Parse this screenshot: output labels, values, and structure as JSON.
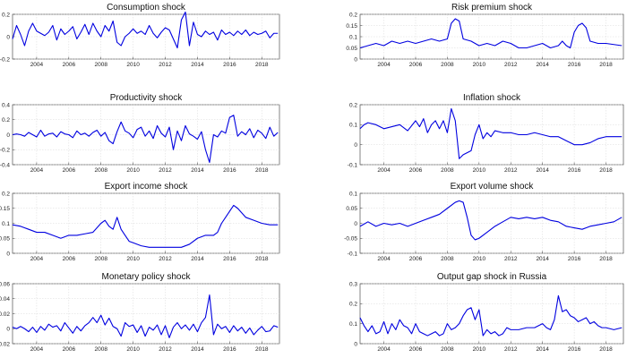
{
  "chart_data": [
    {
      "type": "line",
      "title": "Consumption shock",
      "ylim": [
        -0.2,
        0.2
      ],
      "yticks": [
        -0.2,
        0,
        0.2
      ],
      "xlim": [
        2002.5,
        2019.1
      ],
      "xticks": [
        2004,
        2006,
        2008,
        2010,
        2012,
        2014,
        2016,
        2018
      ],
      "grid": true,
      "color": "#0000e0",
      "x": [
        2002.5,
        2002.75,
        2003,
        2003.25,
        2003.5,
        2003.75,
        2004,
        2004.25,
        2004.5,
        2004.75,
        2005,
        2005.25,
        2005.5,
        2005.75,
        2006,
        2006.25,
        2006.5,
        2006.75,
        2007,
        2007.25,
        2007.5,
        2007.75,
        2008,
        2008.25,
        2008.5,
        2008.75,
        2009,
        2009.25,
        2009.5,
        2009.75,
        2010,
        2010.25,
        2010.5,
        2010.75,
        2011,
        2011.25,
        2011.5,
        2011.75,
        2012,
        2012.25,
        2012.5,
        2012.75,
        2013,
        2013.25,
        2013.5,
        2013.75,
        2014,
        2014.25,
        2014.5,
        2014.75,
        2015,
        2015.25,
        2015.5,
        2015.75,
        2016,
        2016.25,
        2016.5,
        2016.75,
        2017,
        2017.25,
        2017.5,
        2017.75,
        2018,
        2018.25,
        2018.5,
        2018.75,
        2019
      ],
      "y": [
        -0.02,
        0.1,
        0.02,
        -0.08,
        0.05,
        0.12,
        0.05,
        0.03,
        0.01,
        0.04,
        0.1,
        -0.03,
        0.07,
        0.02,
        0.05,
        0.09,
        -0.02,
        0.04,
        0.11,
        0.02,
        0.12,
        0.05,
        0,
        0.1,
        0.05,
        0.14,
        -0.05,
        -0.08,
        0,
        0.03,
        0.07,
        0.03,
        0.05,
        0.02,
        0.1,
        0.03,
        -0.01,
        0.04,
        0.08,
        0.06,
        -0.02,
        -0.1,
        0.15,
        0.22,
        -0.08,
        0.13,
        0.02,
        0,
        0.05,
        0.02,
        0.04,
        -0.03,
        0.06,
        0.02,
        0.04,
        0.01,
        0.05,
        0.02,
        0.06,
        0.01,
        0.04,
        0.02,
        0.03,
        0.05,
        -0.01,
        0.03,
        0.03
      ]
    },
    {
      "type": "line",
      "title": "Risk premium shock",
      "ylim": [
        0,
        0.2
      ],
      "yticks": [
        0,
        0.05,
        0.1,
        0.15,
        0.2
      ],
      "xlim": [
        2002.5,
        2019.1
      ],
      "xticks": [
        2004,
        2006,
        2008,
        2010,
        2012,
        2014,
        2016,
        2018
      ],
      "grid": true,
      "color": "#0000e0",
      "x": [
        2002.5,
        2003,
        2003.5,
        2004,
        2004.5,
        2005,
        2005.5,
        2006,
        2006.5,
        2007,
        2007.5,
        2008,
        2008.25,
        2008.5,
        2008.75,
        2009,
        2009.5,
        2010,
        2010.5,
        2011,
        2011.5,
        2012,
        2012.5,
        2013,
        2013.5,
        2014,
        2014.5,
        2015,
        2015.25,
        2015.5,
        2015.75,
        2016,
        2016.25,
        2016.5,
        2016.75,
        2017,
        2017.5,
        2018,
        2018.5,
        2019
      ],
      "y": [
        0.05,
        0.06,
        0.07,
        0.06,
        0.08,
        0.07,
        0.08,
        0.07,
        0.08,
        0.09,
        0.08,
        0.09,
        0.16,
        0.18,
        0.17,
        0.09,
        0.08,
        0.06,
        0.07,
        0.06,
        0.08,
        0.07,
        0.05,
        0.05,
        0.06,
        0.07,
        0.05,
        0.06,
        0.08,
        0.06,
        0.05,
        0.12,
        0.15,
        0.16,
        0.14,
        0.08,
        0.07,
        0.07,
        0.065,
        0.06
      ]
    },
    {
      "type": "line",
      "title": "Productivity shock",
      "ylim": [
        -0.4,
        0.4
      ],
      "yticks": [
        -0.4,
        -0.2,
        0,
        0.2,
        0.4
      ],
      "xlim": [
        2002.5,
        2019.1
      ],
      "xticks": [
        2004,
        2006,
        2008,
        2010,
        2012,
        2014,
        2016,
        2018
      ],
      "grid": true,
      "color": "#0000e0",
      "x": [
        2002.5,
        2002.75,
        2003,
        2003.25,
        2003.5,
        2003.75,
        2004,
        2004.25,
        2004.5,
        2004.75,
        2005,
        2005.25,
        2005.5,
        2005.75,
        2006,
        2006.25,
        2006.5,
        2006.75,
        2007,
        2007.25,
        2007.5,
        2007.75,
        2008,
        2008.25,
        2008.5,
        2008.75,
        2009,
        2009.25,
        2009.5,
        2009.75,
        2010,
        2010.25,
        2010.5,
        2010.75,
        2011,
        2011.25,
        2011.5,
        2011.75,
        2012,
        2012.25,
        2012.5,
        2012.75,
        2013,
        2013.25,
        2013.5,
        2013.75,
        2014,
        2014.25,
        2014.5,
        2014.75,
        2015,
        2015.25,
        2015.5,
        2015.75,
        2016,
        2016.25,
        2016.5,
        2016.75,
        2017,
        2017.25,
        2017.5,
        2017.75,
        2018,
        2018.25,
        2018.5,
        2018.75,
        2019
      ],
      "y": [
        0,
        0.01,
        0,
        -0.02,
        0.03,
        0,
        -0.03,
        0.06,
        -0.02,
        0.01,
        0.02,
        -0.03,
        0.04,
        0.01,
        0,
        -0.04,
        0.05,
        0,
        0.02,
        -0.02,
        0.03,
        0.06,
        -0.02,
        0.03,
        -0.08,
        -0.12,
        0.04,
        0.17,
        0.05,
        0.02,
        -0.04,
        0.07,
        0.1,
        -0.02,
        0.05,
        -0.05,
        0.12,
        0.02,
        -0.03,
        0.1,
        -0.2,
        0.05,
        -0.08,
        0.12,
        0.01,
        -0.02,
        -0.06,
        0.04,
        -0.2,
        -0.37,
        0,
        -0.03,
        0.05,
        0.02,
        0.23,
        0.26,
        -0.02,
        0.04,
        0,
        0.08,
        -0.04,
        0.06,
        0.02,
        -0.05,
        0.1,
        -0.02,
        0.03
      ]
    },
    {
      "type": "line",
      "title": "Inflation shock",
      "ylim": [
        -0.1,
        0.2
      ],
      "yticks": [
        -0.1,
        0,
        0.1,
        0.2
      ],
      "xlim": [
        2002.5,
        2019.1
      ],
      "xticks": [
        2004,
        2006,
        2008,
        2010,
        2012,
        2014,
        2016,
        2018
      ],
      "grid": true,
      "color": "#0000e0",
      "x": [
        2002.5,
        2002.75,
        2003,
        2003.5,
        2004,
        2004.5,
        2005,
        2005.5,
        2006,
        2006.25,
        2006.5,
        2006.75,
        2007,
        2007.25,
        2007.5,
        2007.75,
        2008,
        2008.25,
        2008.5,
        2008.75,
        2009,
        2009.25,
        2009.5,
        2009.75,
        2010,
        2010.25,
        2010.5,
        2010.75,
        2011,
        2011.5,
        2012,
        2012.5,
        2013,
        2013.5,
        2014,
        2014.5,
        2015,
        2015.5,
        2016,
        2016.5,
        2017,
        2017.5,
        2018,
        2018.5,
        2019
      ],
      "y": [
        0.08,
        0.1,
        0.11,
        0.1,
        0.08,
        0.09,
        0.1,
        0.07,
        0.12,
        0.09,
        0.13,
        0.06,
        0.1,
        0.12,
        0.08,
        0.12,
        0.06,
        0.18,
        0.12,
        -0.07,
        -0.05,
        -0.04,
        -0.03,
        0.05,
        0.1,
        0.03,
        0.06,
        0.04,
        0.07,
        0.06,
        0.06,
        0.05,
        0.05,
        0.06,
        0.05,
        0.04,
        0.04,
        0.02,
        0,
        0,
        0.01,
        0.03,
        0.04,
        0.04,
        0.04
      ]
    },
    {
      "type": "line",
      "title": "Export income shock",
      "ylim": [
        0,
        0.2
      ],
      "yticks": [
        0,
        0.05,
        0.1,
        0.15,
        0.2
      ],
      "xlim": [
        2002.5,
        2019.1
      ],
      "xticks": [
        2004,
        2006,
        2008,
        2010,
        2012,
        2014,
        2016,
        2018
      ],
      "grid": true,
      "color": "#0000e0",
      "x": [
        2002.5,
        2003,
        2003.5,
        2004,
        2004.5,
        2005,
        2005.5,
        2006,
        2006.5,
        2007,
        2007.5,
        2008,
        2008.25,
        2008.5,
        2008.75,
        2009,
        2009.25,
        2009.5,
        2009.75,
        2010,
        2010.5,
        2011,
        2011.5,
        2012,
        2012.5,
        2013,
        2013.5,
        2014,
        2014.5,
        2015,
        2015.25,
        2015.5,
        2015.75,
        2016,
        2016.25,
        2016.5,
        2017,
        2017.5,
        2018,
        2018.5,
        2019
      ],
      "y": [
        0.095,
        0.09,
        0.08,
        0.07,
        0.07,
        0.06,
        0.05,
        0.06,
        0.06,
        0.065,
        0.07,
        0.1,
        0.11,
        0.09,
        0.08,
        0.12,
        0.08,
        0.06,
        0.04,
        0.035,
        0.025,
        0.02,
        0.02,
        0.02,
        0.02,
        0.02,
        0.03,
        0.05,
        0.06,
        0.06,
        0.07,
        0.1,
        0.12,
        0.14,
        0.16,
        0.15,
        0.12,
        0.11,
        0.1,
        0.095,
        0.095
      ]
    },
    {
      "type": "line",
      "title": "Export volume shock",
      "ylim": [
        -0.1,
        0.1
      ],
      "yticks": [
        -0.1,
        -0.05,
        0,
        0.05,
        0.1
      ],
      "xlim": [
        2002.5,
        2019.1
      ],
      "xticks": [
        2004,
        2006,
        2008,
        2010,
        2012,
        2014,
        2016,
        2018
      ],
      "grid": true,
      "color": "#0000e0",
      "x": [
        2002.5,
        2003,
        2003.5,
        2004,
        2004.5,
        2005,
        2005.5,
        2006,
        2006.5,
        2007,
        2007.5,
        2008,
        2008.5,
        2008.75,
        2009,
        2009.25,
        2009.5,
        2009.75,
        2010,
        2010.5,
        2011,
        2011.5,
        2012,
        2012.5,
        2013,
        2013.5,
        2014,
        2014.5,
        2015,
        2015.5,
        2016,
        2016.5,
        2017,
        2017.5,
        2018,
        2018.5,
        2019
      ],
      "y": [
        -0.01,
        0.005,
        -0.01,
        0,
        -0.005,
        0,
        -0.01,
        0,
        0.01,
        0.02,
        0.03,
        0.05,
        0.07,
        0.075,
        0.07,
        0.02,
        -0.04,
        -0.055,
        -0.05,
        -0.03,
        -0.01,
        0.005,
        0.02,
        0.015,
        0.02,
        0.015,
        0.02,
        0.01,
        0.005,
        -0.01,
        -0.015,
        -0.02,
        -0.01,
        -0.005,
        0,
        0.005,
        0.02
      ]
    },
    {
      "type": "line",
      "title": "Monetary policy shock",
      "ylim": [
        -0.02,
        0.06
      ],
      "yticks": [
        -0.02,
        0,
        0.02,
        0.04,
        0.06
      ],
      "xlim": [
        2002.5,
        2019.1
      ],
      "xticks": [
        2004,
        2006,
        2008,
        2010,
        2012,
        2014,
        2016,
        2018
      ],
      "grid": true,
      "color": "#0000e0",
      "x": [
        2002.5,
        2002.75,
        2003,
        2003.25,
        2003.5,
        2003.75,
        2004,
        2004.25,
        2004.5,
        2004.75,
        2005,
        2005.25,
        2005.5,
        2005.75,
        2006,
        2006.25,
        2006.5,
        2006.75,
        2007,
        2007.25,
        2007.5,
        2007.75,
        2008,
        2008.25,
        2008.5,
        2008.75,
        2009,
        2009.25,
        2009.5,
        2009.75,
        2010,
        2010.25,
        2010.5,
        2010.75,
        2011,
        2011.25,
        2011.5,
        2011.75,
        2012,
        2012.25,
        2012.5,
        2012.75,
        2013,
        2013.25,
        2013.5,
        2013.75,
        2014,
        2014.25,
        2014.5,
        2014.75,
        2015,
        2015.25,
        2015.5,
        2015.75,
        2016,
        2016.25,
        2016.5,
        2016.75,
        2017,
        2017.25,
        2017.5,
        2017.75,
        2018,
        2018.25,
        2018.5,
        2018.75,
        2019
      ],
      "y": [
        0.002,
        0,
        0.003,
        0,
        -0.004,
        0.002,
        -0.005,
        0.003,
        -0.002,
        0.006,
        0.002,
        0.004,
        -0.003,
        0.008,
        0.001,
        -0.006,
        0.003,
        -0.003,
        0.004,
        0.008,
        0.015,
        0.008,
        0.018,
        0.005,
        0.014,
        0.003,
        0,
        -0.01,
        0.008,
        0.003,
        0.005,
        -0.005,
        0.004,
        -0.01,
        0.002,
        -0.002,
        0.005,
        -0.008,
        0.004,
        -0.012,
        0.002,
        0.008,
        0,
        0.005,
        -0.002,
        0.006,
        -0.004,
        0.008,
        0.015,
        0.045,
        -0.008,
        0.006,
        0,
        0.003,
        -0.005,
        0.004,
        -0.003,
        0.002,
        -0.006,
        0.001,
        -0.008,
        -0.002,
        0.003,
        -0.004,
        -0.003,
        0.004,
        0.002
      ]
    },
    {
      "type": "line",
      "title": "Output gap shock in Russia",
      "ylim": [
        0,
        0.3
      ],
      "yticks": [
        0,
        0.1,
        0.2,
        0.3
      ],
      "xlim": [
        2002.5,
        2019.1
      ],
      "xticks": [
        2004,
        2006,
        2008,
        2010,
        2012,
        2014,
        2016,
        2018
      ],
      "grid": true,
      "color": "#0000e0",
      "x": [
        2002.5,
        2002.75,
        2003,
        2003.25,
        2003.5,
        2003.75,
        2004,
        2004.25,
        2004.5,
        2004.75,
        2005,
        2005.25,
        2005.5,
        2005.75,
        2006,
        2006.25,
        2006.5,
        2006.75,
        2007,
        2007.25,
        2007.5,
        2007.75,
        2008,
        2008.25,
        2008.5,
        2008.75,
        2009,
        2009.25,
        2009.5,
        2009.75,
        2010,
        2010.25,
        2010.5,
        2010.75,
        2011,
        2011.25,
        2011.5,
        2011.75,
        2012,
        2012.5,
        2013,
        2013.5,
        2014,
        2014.25,
        2014.5,
        2014.75,
        2015,
        2015.25,
        2015.5,
        2015.75,
        2016,
        2016.25,
        2016.5,
        2016.75,
        2017,
        2017.25,
        2017.5,
        2017.75,
        2018,
        2018.5,
        2019
      ],
      "y": [
        0.13,
        0.09,
        0.06,
        0.09,
        0.05,
        0.06,
        0.11,
        0.05,
        0.1,
        0.07,
        0.12,
        0.09,
        0.08,
        0.05,
        0.1,
        0.06,
        0.05,
        0.04,
        0.05,
        0.06,
        0.04,
        0.05,
        0.1,
        0.07,
        0.08,
        0.1,
        0.14,
        0.17,
        0.18,
        0.12,
        0.17,
        0.04,
        0.07,
        0.05,
        0.06,
        0.04,
        0.05,
        0.08,
        0.07,
        0.07,
        0.08,
        0.08,
        0.1,
        0.08,
        0.07,
        0.12,
        0.24,
        0.16,
        0.17,
        0.14,
        0.13,
        0.11,
        0.12,
        0.13,
        0.1,
        0.11,
        0.09,
        0.08,
        0.08,
        0.07,
        0.08
      ]
    }
  ]
}
